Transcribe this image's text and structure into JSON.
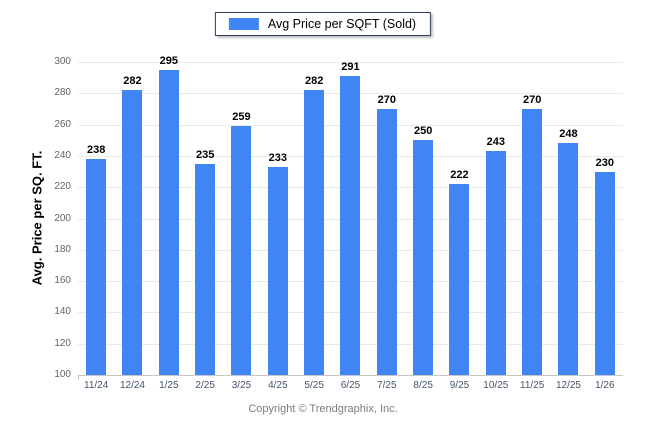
{
  "legend": {
    "label": "Avg Price per SQFT (Sold)",
    "swatch_color": "#4184F3"
  },
  "y_axis": {
    "title": "Avg. Price per SQ. FT.",
    "tick_labels": [
      "100",
      "120",
      "140",
      "160",
      "180",
      "200",
      "220",
      "240",
      "260",
      "280",
      "300"
    ]
  },
  "footer": {
    "copyright": "Copyright © Trendgraphix, Inc."
  },
  "colors": {
    "bar": "#4184F3",
    "gridline": "#e7eaef",
    "axis_line": "#c6c6c6",
    "value_label": "#000000",
    "x_label": "#44546a",
    "y_label": "#636363",
    "legend_border": "#2e3d59",
    "footer_text": "#7b7b7b",
    "background": "#ffffff"
  },
  "chart_data": {
    "type": "bar",
    "title": "",
    "legend_entries": [
      "Avg Price per SQFT (Sold)"
    ],
    "legend_position": "top",
    "categories": [
      "11/24",
      "12/24",
      "1/25",
      "2/25",
      "3/25",
      "4/25",
      "5/25",
      "6/25",
      "7/25",
      "8/25",
      "9/25",
      "10/25",
      "11/25",
      "12/25",
      "1/26"
    ],
    "values": [
      238,
      282,
      295,
      235,
      259,
      233,
      282,
      291,
      270,
      250,
      222,
      243,
      270,
      248,
      230
    ],
    "xlabel": "",
    "ylabel": "Avg. Price per SQ. FT.",
    "ylim": [
      100,
      300
    ],
    "ytick_step": 20,
    "grid": true,
    "bar_color": "#4184F3",
    "value_labels_shown": true
  }
}
